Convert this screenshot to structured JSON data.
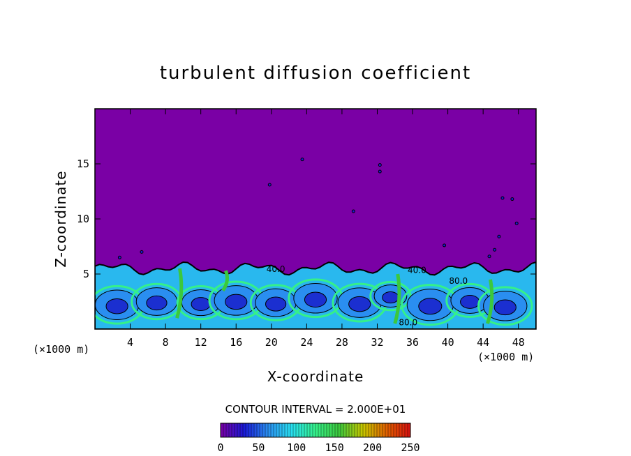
{
  "chart_data": {
    "type": "heatmap",
    "title": "turbulent diffusion coefficient",
    "xlabel": "X-coordinate",
    "ylabel": "Z-coordinate",
    "x_unit": "(×1000 m)",
    "z_unit": "(×1000 m)",
    "xlim": [
      0,
      50
    ],
    "ylim": [
      0,
      20
    ],
    "x_ticks": [
      4,
      8,
      12,
      16,
      20,
      24,
      28,
      32,
      36,
      40,
      44,
      48
    ],
    "y_ticks": [
      5,
      10,
      15
    ],
    "background_value": 0,
    "turbulent_layer_top_km": 5.5,
    "contour_interval": "CONTOUR INTERVAL = 2.000E+01",
    "contour_labels": [
      {
        "text": "40.0",
        "x": 20.5,
        "z": 5.2
      },
      {
        "text": "40.0",
        "x": 36.5,
        "z": 5.1
      },
      {
        "text": "80.0",
        "x": 41.2,
        "z": 4.1
      },
      {
        "text": "80.0",
        "x": 35.5,
        "z": 0.35
      }
    ],
    "colorbar": {
      "min": 0,
      "max": 250,
      "ticks": [
        0,
        50,
        100,
        150,
        200,
        250
      ],
      "colors": [
        "#7a00a5",
        "#1a1ad8",
        "#2a8ef0",
        "#28e0f0",
        "#35f08a",
        "#3cc83c",
        "#c8c800",
        "#e06000",
        "#d81010"
      ]
    }
  }
}
